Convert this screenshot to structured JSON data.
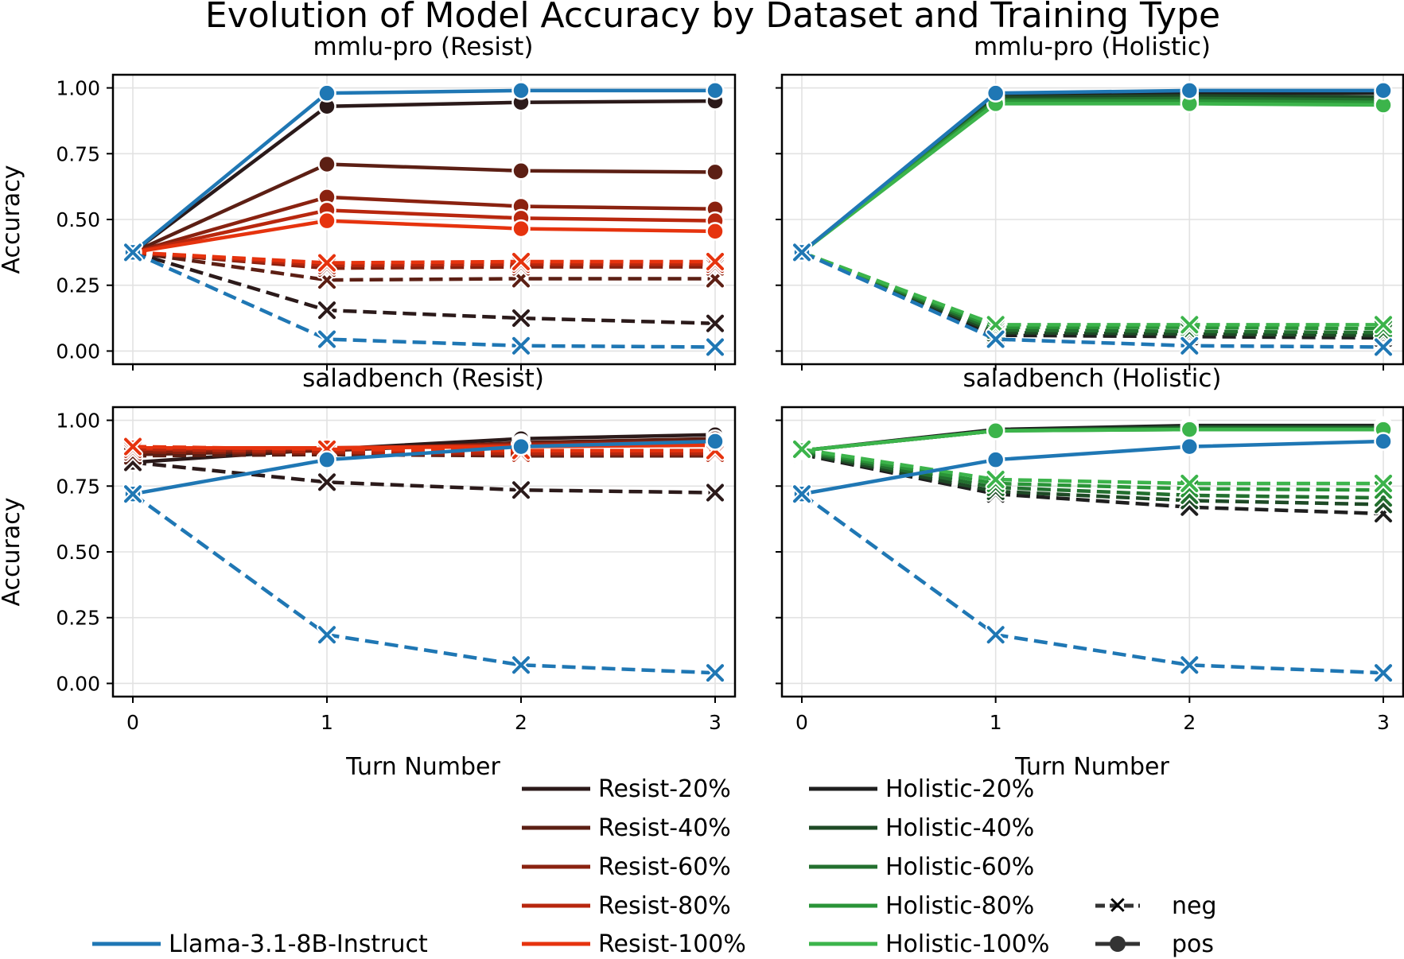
{
  "figure_title": "Evolution of Model Accuracy by Dataset and Training Type",
  "xlabel": "Turn Number",
  "ylabel": "Accuracy",
  "yticks": [
    "0.00",
    "0.25",
    "0.50",
    "0.75",
    "1.00"
  ],
  "xticks": [
    "0",
    "1",
    "2",
    "3"
  ],
  "legend": {
    "resist": [
      "Resist-20%",
      "Resist-40%",
      "Resist-60%",
      "Resist-80%",
      "Resist-100%"
    ],
    "holistic": [
      "Holistic-20%",
      "Holistic-40%",
      "Holistic-60%",
      "Holistic-80%",
      "Holistic-100%"
    ],
    "baseline": "Llama-3.1-8B-Instruct",
    "neg": "neg",
    "pos": "pos"
  },
  "colors": {
    "baseline": "#1f77b4",
    "resist": [
      "#2b1a1a",
      "#5c1f14",
      "#8a2210",
      "#b8270e",
      "#e6330e"
    ],
    "holistic": [
      "#1f1f1f",
      "#1e4a26",
      "#23702f",
      "#2a9438",
      "#3cb44b"
    ]
  },
  "chart_data": [
    {
      "type": "line",
      "title": "mmlu-pro (Resist)",
      "x": [
        0,
        1,
        2,
        3
      ],
      "ylim": [
        -0.05,
        1.05
      ],
      "series": [
        {
          "name": "Resist-20%",
          "style": "pos",
          "values": [
            0.375,
            0.93,
            0.945,
            0.95
          ]
        },
        {
          "name": "Resist-40%",
          "style": "pos",
          "values": [
            0.375,
            0.71,
            0.685,
            0.68
          ]
        },
        {
          "name": "Resist-60%",
          "style": "pos",
          "values": [
            0.375,
            0.585,
            0.55,
            0.54
          ]
        },
        {
          "name": "Resist-80%",
          "style": "pos",
          "values": [
            0.375,
            0.535,
            0.505,
            0.495
          ]
        },
        {
          "name": "Resist-100%",
          "style": "pos",
          "values": [
            0.375,
            0.495,
            0.465,
            0.455
          ]
        },
        {
          "name": "Resist-20%",
          "style": "neg",
          "values": [
            0.375,
            0.155,
            0.125,
            0.105
          ]
        },
        {
          "name": "Resist-40%",
          "style": "neg",
          "values": [
            0.375,
            0.27,
            0.275,
            0.275
          ]
        },
        {
          "name": "Resist-60%",
          "style": "neg",
          "values": [
            0.375,
            0.315,
            0.32,
            0.32
          ]
        },
        {
          "name": "Resist-80%",
          "style": "neg",
          "values": [
            0.375,
            0.325,
            0.33,
            0.33
          ]
        },
        {
          "name": "Resist-100%",
          "style": "neg",
          "values": [
            0.375,
            0.335,
            0.34,
            0.34
          ]
        },
        {
          "name": "Llama-3.1-8B-Instruct",
          "style": "pos",
          "values": [
            0.375,
            0.98,
            0.99,
            0.99
          ]
        },
        {
          "name": "Llama-3.1-8B-Instruct",
          "style": "neg",
          "values": [
            0.375,
            0.045,
            0.02,
            0.015
          ]
        }
      ]
    },
    {
      "type": "line",
      "title": "mmlu-pro (Holistic)",
      "x": [
        0,
        1,
        2,
        3
      ],
      "ylim": [
        -0.05,
        1.05
      ],
      "series": [
        {
          "name": "Holistic-20%",
          "style": "pos",
          "values": [
            0.375,
            0.975,
            0.98,
            0.98
          ]
        },
        {
          "name": "Holistic-40%",
          "style": "pos",
          "values": [
            0.375,
            0.965,
            0.97,
            0.965
          ]
        },
        {
          "name": "Holistic-60%",
          "style": "pos",
          "values": [
            0.375,
            0.955,
            0.96,
            0.955
          ]
        },
        {
          "name": "Holistic-80%",
          "style": "pos",
          "values": [
            0.375,
            0.95,
            0.95,
            0.945
          ]
        },
        {
          "name": "Holistic-100%",
          "style": "pos",
          "values": [
            0.375,
            0.94,
            0.94,
            0.935
          ]
        },
        {
          "name": "Holistic-20%",
          "style": "neg",
          "values": [
            0.375,
            0.06,
            0.055,
            0.05
          ]
        },
        {
          "name": "Holistic-40%",
          "style": "neg",
          "values": [
            0.375,
            0.07,
            0.065,
            0.06
          ]
        },
        {
          "name": "Holistic-60%",
          "style": "neg",
          "values": [
            0.375,
            0.08,
            0.075,
            0.07
          ]
        },
        {
          "name": "Holistic-80%",
          "style": "neg",
          "values": [
            0.375,
            0.09,
            0.09,
            0.085
          ]
        },
        {
          "name": "Holistic-100%",
          "style": "neg",
          "values": [
            0.375,
            0.1,
            0.1,
            0.1
          ]
        },
        {
          "name": "Llama-3.1-8B-Instruct",
          "style": "pos",
          "values": [
            0.375,
            0.98,
            0.99,
            0.99
          ]
        },
        {
          "name": "Llama-3.1-8B-Instruct",
          "style": "neg",
          "values": [
            0.375,
            0.045,
            0.02,
            0.015
          ]
        }
      ]
    },
    {
      "type": "line",
      "title": "saladbench (Resist)",
      "x": [
        0,
        1,
        2,
        3
      ],
      "ylim": [
        -0.05,
        1.05
      ],
      "series": [
        {
          "name": "Resist-20%",
          "style": "pos",
          "values": [
            0.84,
            0.89,
            0.93,
            0.945
          ]
        },
        {
          "name": "Resist-40%",
          "style": "pos",
          "values": [
            0.87,
            0.885,
            0.915,
            0.93
          ]
        },
        {
          "name": "Resist-60%",
          "style": "pos",
          "values": [
            0.88,
            0.89,
            0.91,
            0.92
          ]
        },
        {
          "name": "Resist-80%",
          "style": "pos",
          "values": [
            0.89,
            0.895,
            0.905,
            0.915
          ]
        },
        {
          "name": "Resist-100%",
          "style": "pos",
          "values": [
            0.895,
            0.895,
            0.9,
            0.905
          ]
        },
        {
          "name": "Resist-20%",
          "style": "neg",
          "values": [
            0.84,
            0.765,
            0.735,
            0.725
          ]
        },
        {
          "name": "Resist-40%",
          "style": "neg",
          "values": [
            0.865,
            0.87,
            0.865,
            0.865
          ]
        },
        {
          "name": "Resist-60%",
          "style": "neg",
          "values": [
            0.88,
            0.875,
            0.87,
            0.87
          ]
        },
        {
          "name": "Resist-80%",
          "style": "neg",
          "values": [
            0.89,
            0.88,
            0.875,
            0.875
          ]
        },
        {
          "name": "Resist-100%",
          "style": "neg",
          "values": [
            0.9,
            0.89,
            0.885,
            0.885
          ]
        },
        {
          "name": "Llama-3.1-8B-Instruct",
          "style": "pos",
          "values": [
            0.72,
            0.85,
            0.9,
            0.92
          ]
        },
        {
          "name": "Llama-3.1-8B-Instruct",
          "style": "neg",
          "values": [
            0.72,
            0.185,
            0.07,
            0.04
          ]
        }
      ]
    },
    {
      "type": "line",
      "title": "saladbench (Holistic)",
      "x": [
        0,
        1,
        2,
        3
      ],
      "ylim": [
        -0.05,
        1.05
      ],
      "series": [
        {
          "name": "Holistic-20%",
          "style": "pos",
          "values": [
            0.885,
            0.965,
            0.98,
            0.98
          ]
        },
        {
          "name": "Holistic-40%",
          "style": "pos",
          "values": [
            0.885,
            0.96,
            0.975,
            0.975
          ]
        },
        {
          "name": "Holistic-60%",
          "style": "pos",
          "values": [
            0.885,
            0.96,
            0.97,
            0.97
          ]
        },
        {
          "name": "Holistic-80%",
          "style": "pos",
          "values": [
            0.885,
            0.96,
            0.965,
            0.965
          ]
        },
        {
          "name": "Holistic-100%",
          "style": "pos",
          "values": [
            0.885,
            0.96,
            0.965,
            0.965
          ]
        },
        {
          "name": "Holistic-20%",
          "style": "neg",
          "values": [
            0.87,
            0.72,
            0.67,
            0.645
          ]
        },
        {
          "name": "Holistic-40%",
          "style": "neg",
          "values": [
            0.875,
            0.73,
            0.695,
            0.68
          ]
        },
        {
          "name": "Holistic-60%",
          "style": "neg",
          "values": [
            0.88,
            0.745,
            0.715,
            0.705
          ]
        },
        {
          "name": "Holistic-80%",
          "style": "neg",
          "values": [
            0.885,
            0.76,
            0.74,
            0.735
          ]
        },
        {
          "name": "Holistic-100%",
          "style": "neg",
          "values": [
            0.89,
            0.775,
            0.76,
            0.76
          ]
        },
        {
          "name": "Llama-3.1-8B-Instruct",
          "style": "pos",
          "values": [
            0.72,
            0.85,
            0.9,
            0.92
          ]
        },
        {
          "name": "Llama-3.1-8B-Instruct",
          "style": "neg",
          "values": [
            0.72,
            0.185,
            0.07,
            0.04
          ]
        }
      ]
    }
  ]
}
